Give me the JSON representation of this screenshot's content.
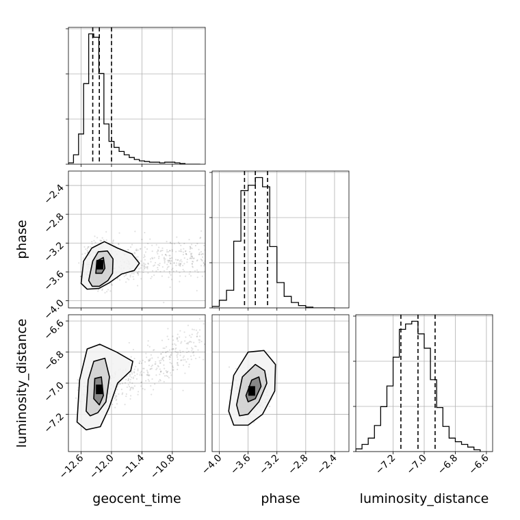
{
  "chart_data": {
    "type": "corner",
    "title": "",
    "parameters": [
      "geocent_time",
      "phase",
      "luminosity_distance"
    ],
    "axis_labels": {
      "x": [
        "geocent_time",
        "phase",
        "luminosity_distance"
      ],
      "y_row1": "phase",
      "y_row2": "luminosity_distance"
    },
    "ranges": {
      "geocent_time": [
        -12.85,
        -10.15
      ],
      "phase": [
        -4.1,
        -2.2
      ],
      "luminosity_distance": [
        -7.44,
        -6.56
      ]
    },
    "ticks": {
      "geocent_time": [
        "−12.6",
        "−12.0",
        "−11.4",
        "−10.8"
      ],
      "phase": [
        "−4.0",
        "−3.6",
        "−3.2",
        "−2.8",
        "−2.4"
      ],
      "phase_y": [
        "−2.4",
        "−2.8",
        "−3.2",
        "−3.6",
        "−4.0"
      ],
      "luminosity_distance": [
        "−7.2",
        "−7.0",
        "−6.8",
        "−6.6"
      ],
      "luminosity_distance_y": [
        "−6.6",
        "−6.8",
        "−7.0",
        "−7.2"
      ]
    },
    "tick_values": {
      "geocent_time": [
        -12.6,
        -12.0,
        -11.4,
        -10.8
      ],
      "phase": [
        -4.0,
        -3.6,
        -3.2,
        -2.8,
        -2.4
      ],
      "luminosity_distance": [
        -7.2,
        -7.0,
        -6.8,
        -6.6
      ]
    },
    "quantiles": {
      "geocent_time": [
        -12.37,
        -12.24,
        -12.0
      ],
      "phase": [
        -3.65,
        -3.5,
        -3.33
      ],
      "luminosity_distance": [
        -7.15,
        -7.04,
        -6.93
      ]
    },
    "histograms": {
      "geocent_time": {
        "bin_edges": [
          -12.85,
          -12.75,
          -12.65,
          -12.55,
          -12.45,
          -12.35,
          -12.25,
          -12.15,
          -12.05,
          -11.95,
          -11.85,
          -11.75,
          -11.65,
          -11.55,
          -11.45,
          -11.35,
          -11.25,
          -11.15,
          -11.05,
          -10.95,
          -10.85,
          -10.75,
          -10.65,
          -10.55,
          -10.45,
          -10.35,
          -10.25
        ],
        "counts": [
          2,
          14,
          45,
          120,
          194,
          189,
          135,
          60,
          34,
          25,
          19,
          14,
          10,
          7,
          5,
          4,
          3,
          3,
          2,
          3,
          3,
          2,
          1,
          0,
          0,
          0
        ]
      },
      "phase": {
        "bin_edges": [
          -4.1,
          -4.0,
          -3.9,
          -3.8,
          -3.7,
          -3.6,
          -3.5,
          -3.4,
          -3.3,
          -3.2,
          -3.1,
          -3.0,
          -2.9,
          -2.8,
          -2.7,
          -2.6,
          -2.5,
          -2.4
        ],
        "counts": [
          2,
          10,
          23,
          87,
          153,
          160,
          170,
          158,
          80,
          33,
          15,
          7,
          3,
          1,
          0,
          0,
          0
        ]
      },
      "luminosity_distance": {
        "bin_edges": [
          -7.44,
          -7.4,
          -7.36,
          -7.32,
          -7.28,
          -7.24,
          -7.2,
          -7.16,
          -7.12,
          -7.08,
          -7.04,
          -7.0,
          -6.96,
          -6.92,
          -6.88,
          -6.84,
          -6.8,
          -6.76,
          -6.72,
          -6.68,
          -6.64
        ],
        "counts": [
          3,
          8,
          15,
          29,
          50,
          73,
          105,
          136,
          142,
          145,
          131,
          115,
          80,
          49,
          28,
          15,
          11,
          8,
          5,
          2
        ]
      }
    },
    "panels_2d": [
      {
        "x": "geocent_time",
        "y": "phase",
        "peak": [
          -12.23,
          -3.5
        ],
        "contours": [
          [
            [
              -12.31,
              -3.62
            ],
            [
              -12.29,
              -3.45
            ],
            [
              -12.16,
              -3.4
            ],
            [
              -12.13,
              -3.55
            ],
            [
              -12.19,
              -3.62
            ]
          ],
          [
            [
              -12.45,
              -3.72
            ],
            [
              -12.37,
              -3.45
            ],
            [
              -12.26,
              -3.32
            ],
            [
              -12.08,
              -3.31
            ],
            [
              -11.97,
              -3.42
            ],
            [
              -11.98,
              -3.62
            ],
            [
              -12.07,
              -3.72
            ],
            [
              -12.24,
              -3.8
            ],
            [
              -12.38,
              -3.8
            ]
          ],
          [
            [
              -12.6,
              -3.76
            ],
            [
              -12.55,
              -3.45
            ],
            [
              -12.39,
              -3.27
            ],
            [
              -12.14,
              -3.18
            ],
            [
              -11.88,
              -3.27
            ],
            [
              -11.6,
              -3.35
            ],
            [
              -11.45,
              -3.48
            ],
            [
              -11.55,
              -3.58
            ],
            [
              -11.8,
              -3.63
            ],
            [
              -12.04,
              -3.75
            ],
            [
              -12.25,
              -3.83
            ],
            [
              -12.48,
              -3.84
            ]
          ]
        ]
      },
      {
        "x": "geocent_time",
        "y": "luminosity_distance",
        "peak": [
          -12.24,
          -7.04
        ],
        "contours": [
          [
            [
              -12.35,
              -7.1
            ],
            [
              -12.33,
              -6.97
            ],
            [
              -12.2,
              -6.96
            ],
            [
              -12.16,
              -7.08
            ],
            [
              -12.24,
              -7.14
            ]
          ],
          [
            [
              -12.5,
              -7.18
            ],
            [
              -12.46,
              -6.98
            ],
            [
              -12.35,
              -6.86
            ],
            [
              -12.13,
              -6.84
            ],
            [
              -12.04,
              -6.96
            ],
            [
              -12.11,
              -7.12
            ],
            [
              -12.27,
              -7.19
            ],
            [
              -12.42,
              -7.21
            ]
          ],
          [
            [
              -12.68,
              -7.25
            ],
            [
              -12.63,
              -6.98
            ],
            [
              -12.48,
              -6.78
            ],
            [
              -12.23,
              -6.75
            ],
            [
              -11.9,
              -6.8
            ],
            [
              -11.58,
              -6.86
            ],
            [
              -11.62,
              -6.92
            ],
            [
              -11.88,
              -7.0
            ],
            [
              -12.05,
              -7.16
            ],
            [
              -12.22,
              -7.28
            ],
            [
              -12.5,
              -7.3
            ]
          ]
        ]
      },
      {
        "x": "phase",
        "y": "luminosity_distance",
        "peak": [
          -3.55,
          -7.05
        ],
        "contours": [
          [
            [
              -3.63,
              -7.08
            ],
            [
              -3.55,
              -6.98
            ],
            [
              -3.45,
              -6.96
            ],
            [
              -3.42,
              -7.02
            ],
            [
              -3.5,
              -7.1
            ],
            [
              -3.6,
              -7.12
            ]
          ],
          [
            [
              -3.76,
              -7.14
            ],
            [
              -3.68,
              -6.96
            ],
            [
              -3.5,
              -6.88
            ],
            [
              -3.37,
              -6.92
            ],
            [
              -3.34,
              -7.0
            ],
            [
              -3.45,
              -7.12
            ],
            [
              -3.6,
              -7.2
            ],
            [
              -3.72,
              -7.21
            ]
          ],
          [
            [
              -3.87,
              -7.18
            ],
            [
              -3.8,
              -6.95
            ],
            [
              -3.6,
              -6.8
            ],
            [
              -3.38,
              -6.79
            ],
            [
              -3.22,
              -6.88
            ],
            [
              -3.23,
              -7.05
            ],
            [
              -3.4,
              -7.2
            ],
            [
              -3.6,
              -7.27
            ],
            [
              -3.8,
              -7.27
            ]
          ]
        ]
      }
    ]
  }
}
